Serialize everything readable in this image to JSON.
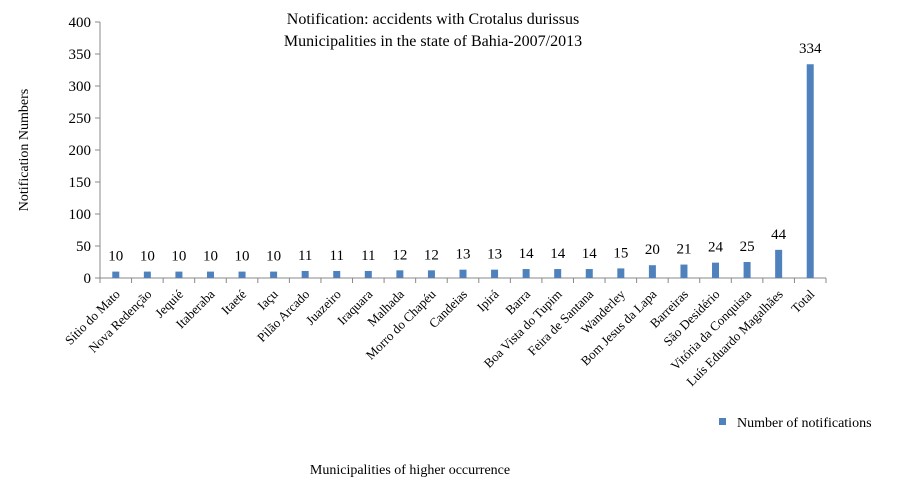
{
  "chart_data": {
    "type": "bar",
    "title_lines": [
      "Notification: accidents with Crotalus durissus",
      "Municipalities in the state of Bahia-2007/2013"
    ],
    "xlabel": "Municipalities of higher occurrence",
    "ylabel": "Notification Numbers",
    "ylim": [
      0,
      400
    ],
    "yticks": [
      "0",
      "50",
      "100",
      "150",
      "200",
      "250",
      "300",
      "350",
      "400"
    ],
    "categories": [
      "Sítio do Mato",
      "Nova Redenção",
      "Jequié",
      "Itaberaba",
      "Itaeté",
      "Iaçu",
      "Pilão Arcado",
      "Juazeiro",
      "Iraquara",
      "Malhada",
      "Morro do Chapéu",
      "Candeias",
      "Ipirá",
      "Barra",
      "Boa Vista do Tupim",
      "Feira de Santana",
      "Wanderley",
      "Bom Jesus da Lapa",
      "Barreiras",
      "São Desidério",
      "Vitória da Conquista",
      "Luís Eduardo Magalhães",
      "Total"
    ],
    "series": [
      {
        "name": "Number of notifications",
        "color": "#4f81bd",
        "values": [
          10,
          10,
          10,
          10,
          10,
          10,
          11,
          11,
          11,
          12,
          12,
          13,
          13,
          14,
          14,
          14,
          15,
          20,
          21,
          24,
          25,
          44,
          334
        ]
      }
    ],
    "grid": false,
    "legend_position": "bottom-right"
  }
}
